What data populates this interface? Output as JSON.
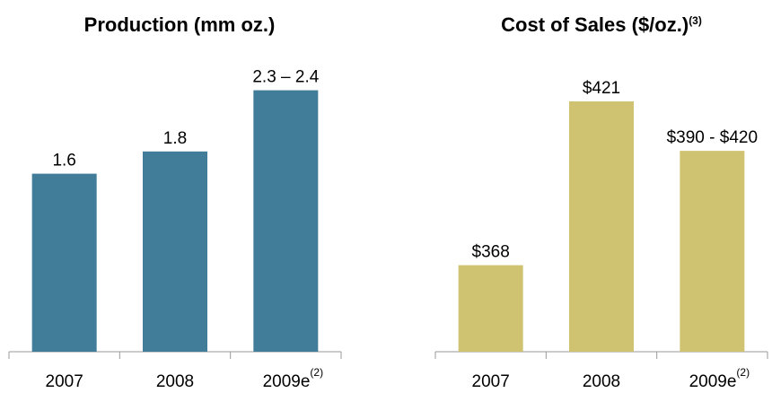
{
  "chart_data": [
    {
      "type": "bar",
      "title": "Production (mm oz.)",
      "categories": [
        "2007",
        "2008",
        "2009e"
      ],
      "category_superscripts": [
        null,
        null,
        "(2)"
      ],
      "values": [
        1.6,
        1.8,
        2.35
      ],
      "value_labels": [
        "1.6",
        "1.8",
        "2.3 – 2.4"
      ],
      "color": "#417d99",
      "ylim": [
        0,
        2.5
      ]
    },
    {
      "type": "bar",
      "title": "Cost of Sales ($/oz.)",
      "title_superscript": "(3)",
      "categories": [
        "2007",
        "2008",
        "2009e"
      ],
      "category_superscripts": [
        null,
        null,
        "(2)"
      ],
      "values": [
        368,
        421,
        405
      ],
      "value_labels": [
        "$368",
        "$421",
        "$390 - $420"
      ],
      "color": "#cfc372",
      "ylim": [
        340,
        430
      ]
    }
  ]
}
